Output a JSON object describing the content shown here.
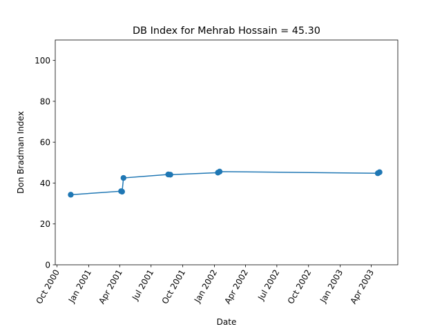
{
  "chart_data": {
    "type": "line",
    "title": "DB Index for Mehrab Hossain = 45.30",
    "xlabel": "Date",
    "ylabel": "Don Bradman Index",
    "ylim": [
      0,
      110
    ],
    "xlim": [
      "2000-09-26",
      "2003-06-17"
    ],
    "yticks": [
      0,
      20,
      40,
      60,
      80,
      100
    ],
    "xticks": [
      {
        "date": "2000-10-01",
        "label": "Oct 2000"
      },
      {
        "date": "2001-01-01",
        "label": "Jan 2001"
      },
      {
        "date": "2001-04-01",
        "label": "Apr 2001"
      },
      {
        "date": "2001-07-01",
        "label": "Jul 2001"
      },
      {
        "date": "2001-10-01",
        "label": "Oct 2001"
      },
      {
        "date": "2002-01-01",
        "label": "Jan 2002"
      },
      {
        "date": "2002-04-01",
        "label": "Apr 2002"
      },
      {
        "date": "2002-07-01",
        "label": "Jul 2002"
      },
      {
        "date": "2002-10-01",
        "label": "Oct 2002"
      },
      {
        "date": "2003-01-01",
        "label": "Jan 2003"
      },
      {
        "date": "2003-04-01",
        "label": "Apr 2003"
      }
    ],
    "grid": false,
    "series": [
      {
        "color": "#1f77b4",
        "marker": "circle",
        "points": [
          {
            "x": "2000-11-10",
            "y": 34.3
          },
          {
            "x": "2001-04-05",
            "y": 36.0
          },
          {
            "x": "2001-04-08",
            "y": 35.8
          },
          {
            "x": "2001-04-12",
            "y": 42.5
          },
          {
            "x": "2001-08-20",
            "y": 44.2
          },
          {
            "x": "2001-08-26",
            "y": 44.1
          },
          {
            "x": "2002-01-11",
            "y": 45.1
          },
          {
            "x": "2002-01-16",
            "y": 45.6
          },
          {
            "x": "2003-04-20",
            "y": 44.8
          },
          {
            "x": "2003-04-25",
            "y": 45.3
          }
        ]
      }
    ]
  }
}
